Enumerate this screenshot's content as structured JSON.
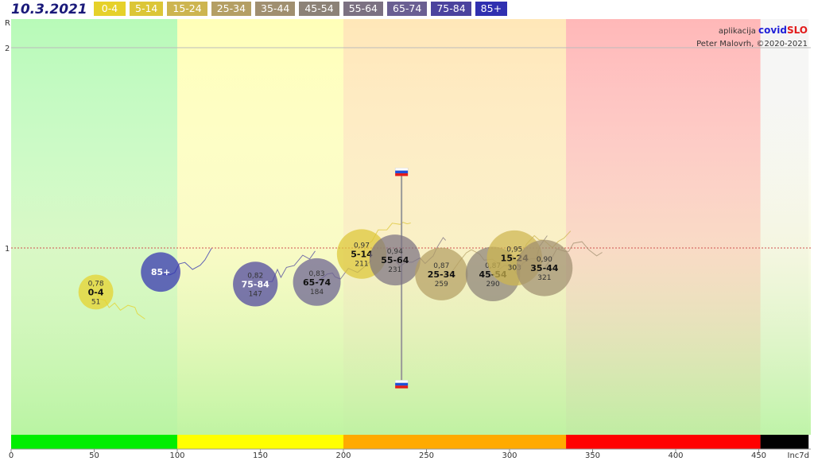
{
  "header": {
    "date": "10.3.2021"
  },
  "legend": [
    {
      "label": "0-4",
      "color": "#e6d12a"
    },
    {
      "label": "5-14",
      "color": "#dcc637"
    },
    {
      "label": "15-24",
      "color": "#cdb550"
    },
    {
      "label": "25-34",
      "color": "#b49f64"
    },
    {
      "label": "35-44",
      "color": "#a08f70"
    },
    {
      "label": "45-54",
      "color": "#8c8277"
    },
    {
      "label": "55-64",
      "color": "#7c7182"
    },
    {
      "label": "65-74",
      "color": "#6a5f92"
    },
    {
      "label": "75-84",
      "color": "#4b439e"
    },
    {
      "label": "85+",
      "color": "#3030b0"
    }
  ],
  "credits": {
    "prefix": "aplikacija",
    "brand_a": "covid",
    "brand_b": "SLO",
    "author": "Peter Malovrh, ©2020-2021"
  },
  "chart_data": {
    "type": "scatter",
    "title": "10.3.2021",
    "xlabel": "Inc7d",
    "ylabel": "R",
    "xlim": [
      0,
      480
    ],
    "ylim": [
      0,
      2.2
    ],
    "x_ticks": [
      0,
      50,
      100,
      150,
      200,
      250,
      300,
      350,
      400,
      450
    ],
    "y_ticks": [
      1,
      2
    ],
    "reference_line_y": 1,
    "zones": [
      {
        "from": 0,
        "to": 100,
        "color": "#00ee00"
      },
      {
        "from": 100,
        "to": 200,
        "color": "#ffff00"
      },
      {
        "from": 200,
        "to": 334,
        "color": "#ffaa00"
      },
      {
        "from": 334,
        "to": 451,
        "color": "#ff0000"
      },
      {
        "from": 451,
        "to": 480,
        "color": "#000000"
      }
    ],
    "vertical_marker": {
      "x": 235,
      "y_low": 0.32,
      "y_high": 1.38
    },
    "points": [
      {
        "group": "0-4",
        "x": 51,
        "r": 0.78,
        "r_label": "0,78",
        "inc_label": "51",
        "color": "#e6d12a"
      },
      {
        "group": "85+",
        "x": 90,
        "r": 0.88,
        "r_label": "",
        "inc_label": "",
        "color": "#3030b0"
      },
      {
        "group": "75-84",
        "x": 147,
        "r": 0.82,
        "r_label": "0,82",
        "inc_label": "147",
        "color": "#4b439e"
      },
      {
        "group": "65-74",
        "x": 184,
        "r": 0.83,
        "r_label": "0,83",
        "inc_label": "184",
        "color": "#6a5f92"
      },
      {
        "group": "5-14",
        "x": 211,
        "r": 0.97,
        "r_label": "0,97",
        "inc_label": "211",
        "color": "#dcc637"
      },
      {
        "group": "55-64",
        "x": 231,
        "r": 0.94,
        "r_label": "0,94",
        "inc_label": "231",
        "color": "#7c7182"
      },
      {
        "group": "25-34",
        "x": 259,
        "r": 0.87,
        "r_label": "0,87",
        "inc_label": "259",
        "color": "#b49f64"
      },
      {
        "group": "45-54",
        "x": 290,
        "r": 0.87,
        "r_label": "0,87",
        "inc_label": "290",
        "color": "#8c8277"
      },
      {
        "group": "15-24",
        "x": 303,
        "r": 0.95,
        "r_label": "0,95",
        "inc_label": "303",
        "color": "#cdb550"
      },
      {
        "group": "35-44",
        "x": 321,
        "r": 0.9,
        "r_label": "0,90",
        "inc_label": "321",
        "color": "#a08f70"
      }
    ]
  }
}
